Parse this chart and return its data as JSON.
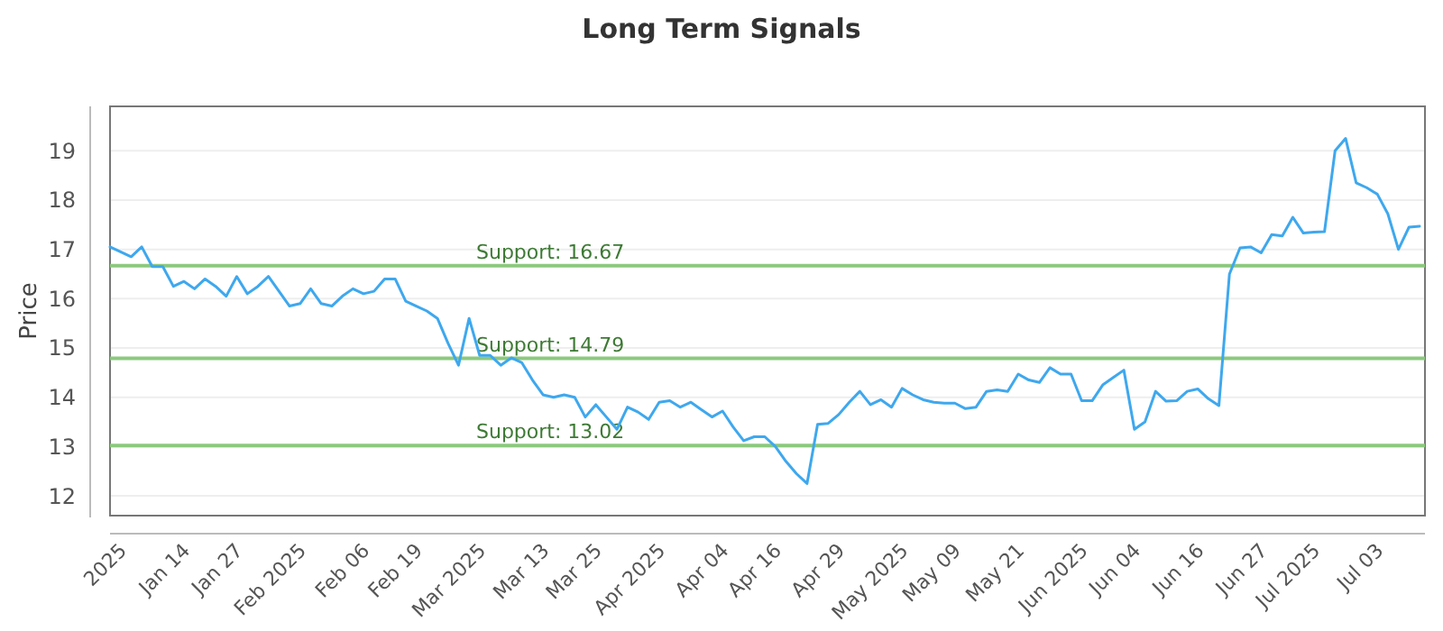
{
  "chart_data": {
    "type": "line",
    "title": "Long Term Signals",
    "ylabel": "Price",
    "categories": [
      null,
      "2025",
      null,
      null,
      null,
      null,
      null,
      "Jan 14",
      null,
      null,
      null,
      null,
      "Jan 27",
      null,
      null,
      null,
      null,
      null,
      "Feb 2025",
      null,
      null,
      null,
      null,
      null,
      "Feb 06",
      null,
      null,
      null,
      null,
      "Feb 19",
      null,
      null,
      null,
      null,
      null,
      "Mar 2025",
      null,
      null,
      null,
      null,
      null,
      "Mar 13",
      null,
      null,
      null,
      null,
      "Mar 25",
      null,
      null,
      null,
      null,
      null,
      "Apr 2025",
      null,
      null,
      null,
      null,
      null,
      "Apr 04",
      null,
      null,
      null,
      null,
      "Apr 16",
      null,
      null,
      null,
      null,
      null,
      "Apr 29",
      null,
      null,
      null,
      null,
      null,
      "May 2025",
      null,
      null,
      null,
      null,
      "May 09",
      null,
      null,
      null,
      null,
      null,
      "May 21",
      null,
      null,
      null,
      null,
      null,
      "Jun 2025",
      null,
      null,
      null,
      null,
      "Jun 04",
      null,
      null,
      null,
      null,
      null,
      "Jun 16",
      null,
      null,
      null,
      null,
      null,
      "Jun 27",
      null,
      null,
      null,
      null,
      "Jul 2025",
      null,
      null,
      null,
      null,
      null,
      "Jul 03",
      null,
      null,
      null,
      null
    ],
    "series": [
      {
        "color": "#3ea8ee",
        "values": [
          17.05,
          16.95,
          16.85,
          17.05,
          16.65,
          16.65,
          16.25,
          16.35,
          16.2,
          16.4,
          16.25,
          16.05,
          16.45,
          16.1,
          16.25,
          16.45,
          16.15,
          15.85,
          15.9,
          16.2,
          15.9,
          15.85,
          16.05,
          16.2,
          16.1,
          16.15,
          16.4,
          16.4,
          15.95,
          15.85,
          15.75,
          15.6,
          15.1,
          14.65,
          15.6,
          14.85,
          14.85,
          14.65,
          14.8,
          14.7,
          14.35,
          14.05,
          14.0,
          14.05,
          14.0,
          13.6,
          13.85,
          13.6,
          13.35,
          13.8,
          13.7,
          13.55,
          13.9,
          13.93,
          13.8,
          13.9,
          13.75,
          13.6,
          13.72,
          13.4,
          13.12,
          13.2,
          13.2,
          13.0,
          12.7,
          12.45,
          12.25,
          13.45,
          13.47,
          13.65,
          13.9,
          14.12,
          13.85,
          13.95,
          13.8,
          14.18,
          14.05,
          13.95,
          13.9,
          13.88,
          13.88,
          13.77,
          13.8,
          14.12,
          14.15,
          14.12,
          14.47,
          14.35,
          14.3,
          14.6,
          14.47,
          14.47,
          13.93,
          13.93,
          14.25,
          14.4,
          14.55,
          13.35,
          13.5,
          14.12,
          13.92,
          13.93,
          14.12,
          14.17,
          13.97,
          13.83,
          16.5,
          17.03,
          17.05,
          16.93,
          17.3,
          17.27,
          17.65,
          17.33,
          17.35,
          17.36,
          19.0,
          19.25,
          18.35,
          18.25,
          18.12,
          17.72,
          17.0,
          17.45,
          17.47
        ]
      }
    ],
    "ylim": [
      11.6,
      19.9
    ],
    "yticks": [
      12,
      13,
      14,
      15,
      16,
      17,
      18,
      19
    ],
    "grid": "y",
    "marker": "none",
    "line_style": "solid",
    "ref_lines": [
      {
        "axis": "y",
        "value": 16.67,
        "label": "Support: 16.67",
        "color": "#8cc97e"
      },
      {
        "axis": "y",
        "value": 14.79,
        "label": "Support: 14.79",
        "color": "#8cc97e"
      },
      {
        "axis": "y",
        "value": 13.02,
        "label": "Support: 13.02",
        "color": "#8cc97e"
      }
    ]
  }
}
